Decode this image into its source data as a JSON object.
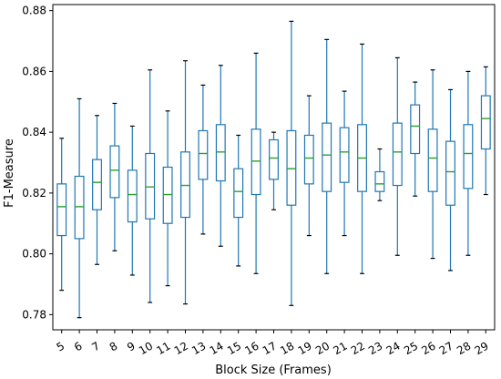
{
  "chart_data": {
    "type": "box",
    "xlabel": "Block Size (Frames)",
    "ylabel": "F1-Measure",
    "ylim": [
      0.775,
      0.882
    ],
    "yticks": [
      0.78,
      0.8,
      0.82,
      0.84,
      0.86,
      0.88
    ],
    "ytick_labels": [
      "0.78",
      "0.80",
      "0.82",
      "0.84",
      "0.86",
      "0.88"
    ],
    "categories": [
      "5",
      "6",
      "7",
      "8",
      "9",
      "10",
      "11",
      "12",
      "13",
      "14",
      "15",
      "16",
      "17",
      "18",
      "19",
      "20",
      "21",
      "22",
      "23",
      "24",
      "25",
      "26",
      "27",
      "28",
      "29"
    ],
    "boxes": [
      {
        "min": 0.788,
        "q1": 0.806,
        "median": 0.8155,
        "q3": 0.823,
        "max": 0.838
      },
      {
        "min": 0.779,
        "q1": 0.805,
        "median": 0.8155,
        "q3": 0.8255,
        "max": 0.851
      },
      {
        "min": 0.7965,
        "q1": 0.8145,
        "median": 0.8235,
        "q3": 0.831,
        "max": 0.8455
      },
      {
        "min": 0.801,
        "q1": 0.8185,
        "median": 0.8275,
        "q3": 0.8355,
        "max": 0.8495
      },
      {
        "min": 0.793,
        "q1": 0.8105,
        "median": 0.8195,
        "q3": 0.8275,
        "max": 0.842
      },
      {
        "min": 0.784,
        "q1": 0.8115,
        "median": 0.822,
        "q3": 0.833,
        "max": 0.8605
      },
      {
        "min": 0.7895,
        "q1": 0.81,
        "median": 0.8195,
        "q3": 0.8285,
        "max": 0.847
      },
      {
        "min": 0.7835,
        "q1": 0.812,
        "median": 0.8225,
        "q3": 0.8335,
        "max": 0.8635
      },
      {
        "min": 0.8065,
        "q1": 0.8245,
        "median": 0.833,
        "q3": 0.8405,
        "max": 0.8555
      },
      {
        "min": 0.8025,
        "q1": 0.824,
        "median": 0.8335,
        "q3": 0.8425,
        "max": 0.862
      },
      {
        "min": 0.796,
        "q1": 0.812,
        "median": 0.8205,
        "q3": 0.828,
        "max": 0.839
      },
      {
        "min": 0.7935,
        "q1": 0.8195,
        "median": 0.8305,
        "q3": 0.841,
        "max": 0.866
      },
      {
        "min": 0.8145,
        "q1": 0.8245,
        "median": 0.8315,
        "q3": 0.8375,
        "max": 0.84
      },
      {
        "min": 0.783,
        "q1": 0.816,
        "median": 0.828,
        "q3": 0.8405,
        "max": 0.8765
      },
      {
        "min": 0.806,
        "q1": 0.823,
        "median": 0.8315,
        "q3": 0.839,
        "max": 0.852
      },
      {
        "min": 0.7935,
        "q1": 0.8205,
        "median": 0.8325,
        "q3": 0.843,
        "max": 0.8705
      },
      {
        "min": 0.806,
        "q1": 0.8235,
        "median": 0.8335,
        "q3": 0.8415,
        "max": 0.8535
      },
      {
        "min": 0.7935,
        "q1": 0.8205,
        "median": 0.8315,
        "q3": 0.8425,
        "max": 0.869
      },
      {
        "min": 0.8175,
        "q1": 0.8205,
        "median": 0.823,
        "q3": 0.827,
        "max": 0.8345
      },
      {
        "min": 0.7995,
        "q1": 0.8225,
        "median": 0.8335,
        "q3": 0.843,
        "max": 0.8645
      },
      {
        "min": 0.819,
        "q1": 0.833,
        "median": 0.842,
        "q3": 0.849,
        "max": 0.8565
      },
      {
        "min": 0.7985,
        "q1": 0.8205,
        "median": 0.8315,
        "q3": 0.841,
        "max": 0.8605
      },
      {
        "min": 0.7945,
        "q1": 0.816,
        "median": 0.827,
        "q3": 0.837,
        "max": 0.854
      },
      {
        "min": 0.7995,
        "q1": 0.8215,
        "median": 0.833,
        "q3": 0.8425,
        "max": 0.86
      },
      {
        "min": 0.8195,
        "q1": 0.8345,
        "median": 0.8445,
        "q3": 0.852,
        "max": 0.8615
      }
    ],
    "grid": false,
    "colors": {
      "box": "#1f77b4",
      "median": "#2ca02c",
      "cap": "#000000"
    }
  }
}
